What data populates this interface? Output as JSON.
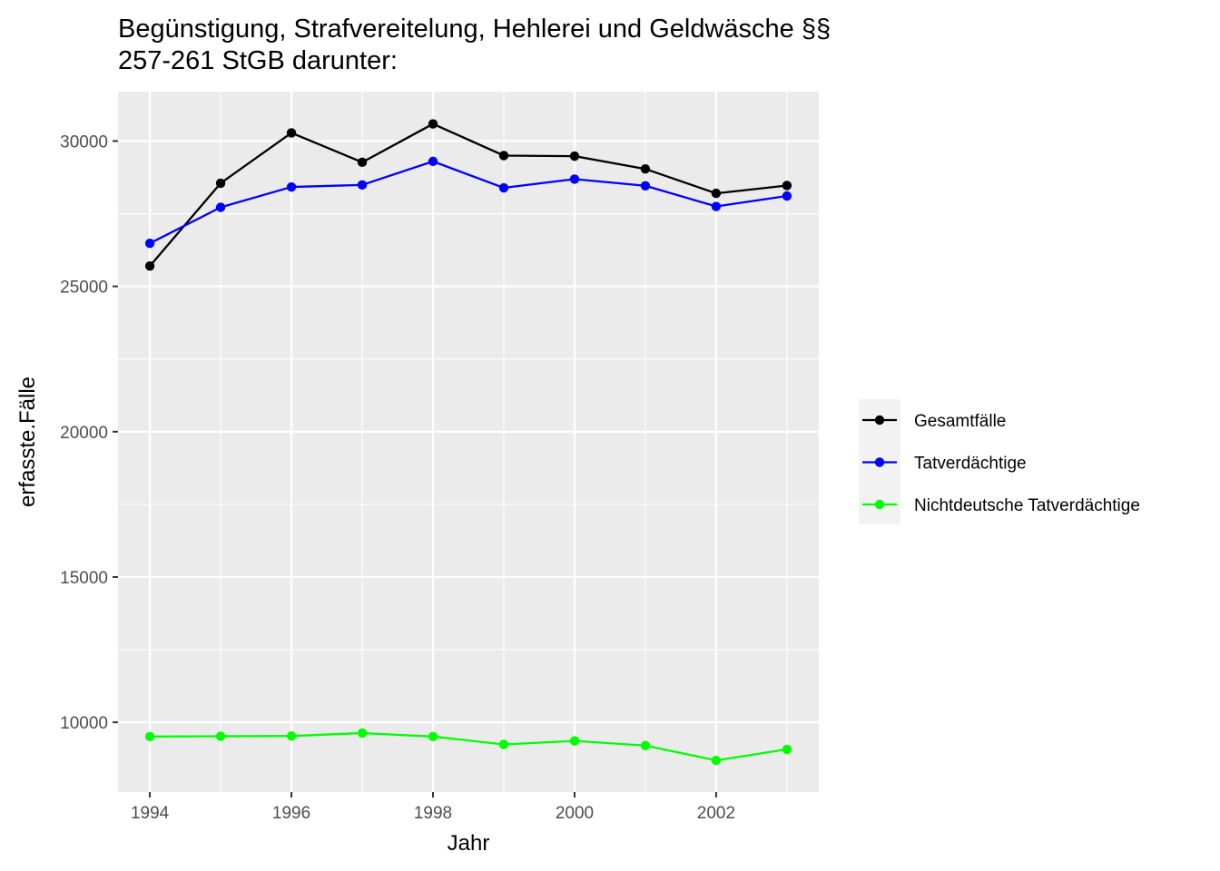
{
  "chart_data": {
    "type": "line",
    "title_lines": [
      "Begünstigung, Strafvereitelung, Hehlerei und Geldwäsche §§",
      "257-261 StGB darunter:"
    ],
    "xlabel": "Jahr",
    "ylabel": "erfasste.Fälle",
    "x": [
      1994,
      1995,
      1996,
      1997,
      1998,
      1999,
      2000,
      2001,
      2002,
      2003
    ],
    "xlim": [
      1993.55,
      2003.45
    ],
    "ylim": [
      7600,
      31700
    ],
    "x_ticks": [
      1994,
      1996,
      1998,
      2000,
      2002
    ],
    "y_ticks": [
      10000,
      15000,
      20000,
      25000,
      30000
    ],
    "grid": true,
    "legend_position": "right",
    "series": [
      {
        "name": "Gesamtfälle",
        "color": "#000000",
        "values": [
          25700,
          28550,
          30280,
          29270,
          30590,
          29500,
          29480,
          29040,
          28200,
          28470
        ]
      },
      {
        "name": "Tatverdächtige",
        "color": "#0000ff",
        "values": [
          26480,
          27720,
          28420,
          28490,
          29300,
          28390,
          28690,
          28460,
          27750,
          28110
        ]
      },
      {
        "name": "Nichtdeutsche Tatverdächtige",
        "color": "#00ff00",
        "values": [
          9510,
          9520,
          9530,
          9630,
          9510,
          9240,
          9360,
          9200,
          8690,
          9070
        ]
      }
    ]
  }
}
